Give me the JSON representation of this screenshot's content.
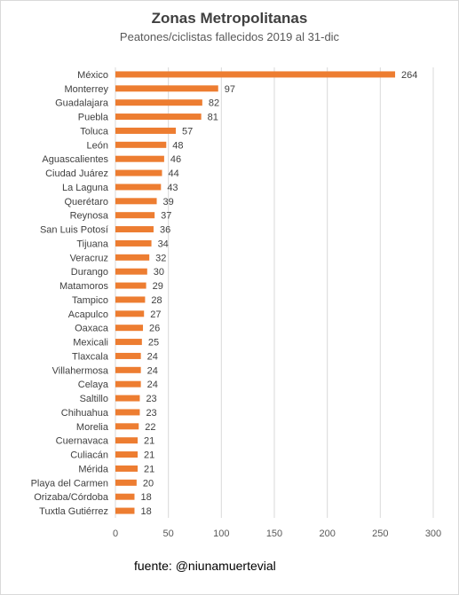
{
  "chart_data": {
    "type": "bar",
    "orientation": "horizontal",
    "title": "Zonas Metropolitanas",
    "subtitle": "Peatones/ciclistas fallecidos 2019 al 31-dic",
    "xlabel": "",
    "ylabel": "",
    "xlim": [
      0,
      300
    ],
    "xticks": [
      0,
      50,
      100,
      150,
      200,
      250,
      300
    ],
    "grid": "vertical",
    "bar_color": "#ED7D31",
    "categories": [
      "México",
      "Monterrey",
      "Guadalajara",
      "Puebla",
      "Toluca",
      "León",
      "Aguascalientes",
      "Ciudad Juárez",
      "La Laguna",
      "Querétaro",
      "Reynosa",
      "San Luis Potosí",
      "Tijuana",
      "Veracruz",
      "Durango",
      "Matamoros",
      "Tampico",
      "Acapulco",
      "Oaxaca",
      "Mexicali",
      "Tlaxcala",
      "Villahermosa",
      "Celaya",
      "Saltillo",
      "Chihuahua",
      "Morelia",
      "Cuernavaca",
      "Culiacán",
      "Mérida",
      "Playa del Carmen",
      "Orizaba/Córdoba",
      "Tuxtla Gutiérrez"
    ],
    "values": [
      264,
      97,
      82,
      81,
      57,
      48,
      46,
      44,
      43,
      39,
      37,
      36,
      34,
      32,
      30,
      29,
      28,
      27,
      26,
      25,
      24,
      24,
      24,
      23,
      23,
      22,
      21,
      21,
      21,
      20,
      18,
      18
    ]
  },
  "source": "fuente: @niunamuertevial"
}
